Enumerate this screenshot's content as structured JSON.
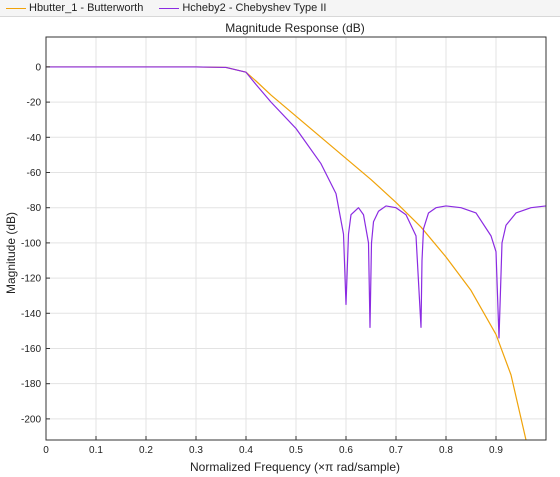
{
  "legend": [
    {
      "label": "Hbutter_1 - Butterworth",
      "color": "#f0a30a"
    },
    {
      "label": "Hcheby2 - Chebyshev Type II",
      "color": "#8b2be2"
    }
  ],
  "chart_data": {
    "type": "line",
    "title": "Magnitude Response (dB)",
    "xlabel": "Normalized Frequency (×π rad/sample)",
    "ylabel": "Magnitude (dB)",
    "xlim": [
      0,
      1
    ],
    "ylim": [
      -212,
      17
    ],
    "xticks": [
      0,
      0.1,
      0.2,
      0.3,
      0.4,
      0.5,
      0.6,
      0.7,
      0.8,
      0.9
    ],
    "yticks": [
      0,
      -20,
      -40,
      -60,
      -80,
      -100,
      -120,
      -140,
      -160,
      -180,
      -200
    ],
    "grid": true,
    "series": [
      {
        "name": "Hbutter_1 - Butterworth",
        "color": "#f0a30a",
        "x": [
          0,
          0.3,
          0.36,
          0.4,
          0.42,
          0.45,
          0.5,
          0.55,
          0.6,
          0.65,
          0.7,
          0.75,
          0.8,
          0.85,
          0.9,
          0.93,
          0.96
        ],
        "y": [
          0,
          0,
          -0.3,
          -3,
          -8,
          -16,
          -28,
          -40,
          -52,
          -64,
          -77,
          -91,
          -108,
          -127,
          -152,
          -175,
          -212
        ]
      },
      {
        "name": "Hcheby2 - Chebyshev Type II",
        "color": "#8b2be2",
        "x": [
          0,
          0.3,
          0.36,
          0.4,
          0.42,
          0.45,
          0.5,
          0.55,
          0.58,
          0.595,
          0.6,
          0.605,
          0.61,
          0.625,
          0.635,
          0.645,
          0.648,
          0.651,
          0.655,
          0.665,
          0.68,
          0.7,
          0.72,
          0.74,
          0.75,
          0.752,
          0.755,
          0.765,
          0.78,
          0.8,
          0.83,
          0.86,
          0.89,
          0.9,
          0.906,
          0.912,
          0.92,
          0.94,
          0.97,
          1.0
        ],
        "y": [
          0,
          0,
          -0.3,
          -3,
          -10,
          -20,
          -35,
          -55,
          -72,
          -95,
          -135,
          -95,
          -84,
          -80,
          -84,
          -100,
          -148,
          -100,
          -88,
          -82,
          -79,
          -80,
          -84,
          -96,
          -148,
          -110,
          -92,
          -83,
          -80,
          -79,
          -80,
          -83,
          -96,
          -105,
          -154,
          -100,
          -90,
          -83,
          -80,
          -79
        ]
      }
    ]
  }
}
